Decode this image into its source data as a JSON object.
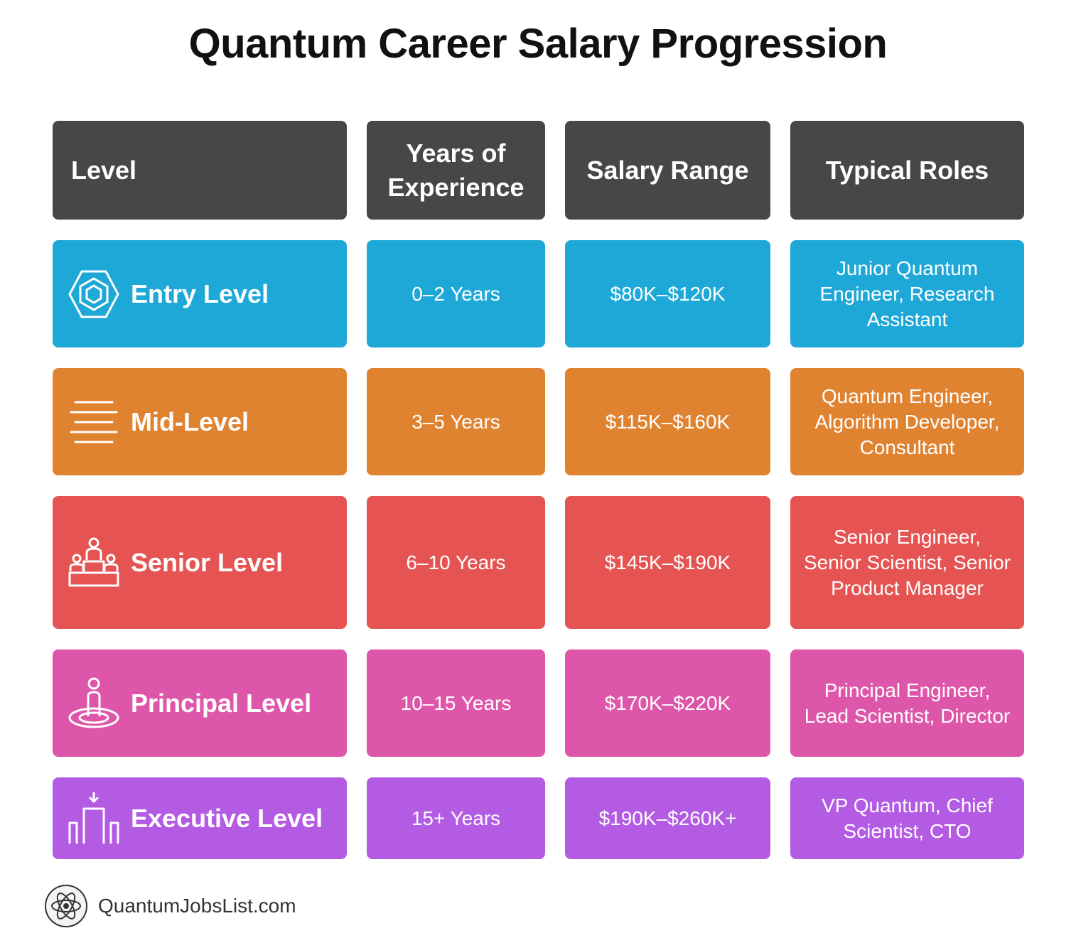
{
  "title": "Quantum Career Salary Progression",
  "headers": {
    "level": "Level",
    "years": "Years of Experience",
    "salary": "Salary Range",
    "roles": "Typical Roles"
  },
  "rows": [
    {
      "level": "Entry Level",
      "icon": "hexagon-icon",
      "years": "0–2 Years",
      "salary": "$80K–$120K",
      "roles": "Junior Quantum Engineer, Research Assistant",
      "color": "#1EA8D8"
    },
    {
      "level": "Mid-Level",
      "icon": "stacked-lines-icon",
      "years": "3–5 Years",
      "salary": "$115K–$160K",
      "roles": "Quantum Engineer, Algorithm Developer, Consultant",
      "color": "#E08331"
    },
    {
      "level": "Senior Level",
      "icon": "podium-people-icon",
      "years": "6–10 Years",
      "salary": "$145K–$190K",
      "roles": "Senior Engineer, Senior Scientist, Senior Product Manager",
      "color": "#E55453"
    },
    {
      "level": "Principal Level",
      "icon": "person-on-target-icon",
      "years": "10–15 Years",
      "salary": "$170K–$220K",
      "roles": "Principal Engineer, Lead Scientist, Director",
      "color": "#DE56A9"
    },
    {
      "level": "Executive Level",
      "icon": "building-arrow-icon",
      "years": "15+ Years",
      "salary": "$190K–$260K+",
      "roles": "VP Quantum, Chief Scientist, CTO",
      "color": "#B45BE4"
    }
  ],
  "footer": {
    "site": "QuantumJobsList.com",
    "icon": "atom-icon"
  }
}
